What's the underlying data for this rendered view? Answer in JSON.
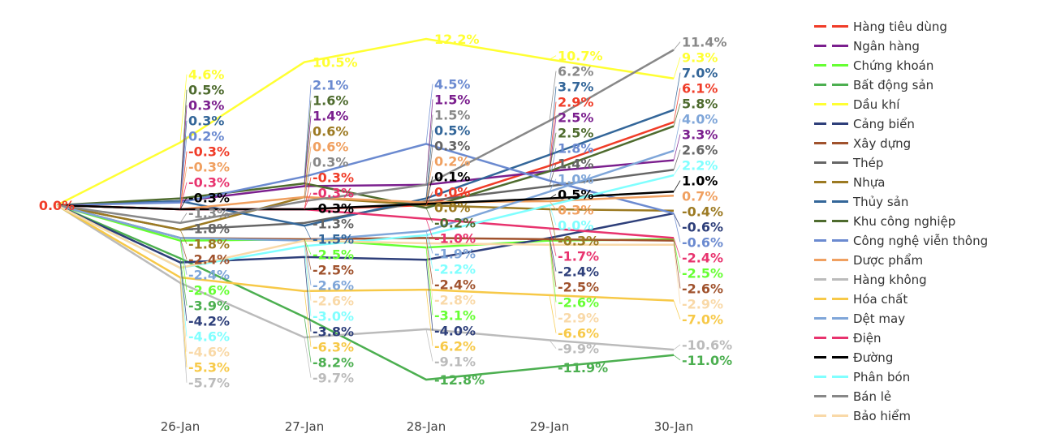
{
  "chart_data": {
    "type": "line",
    "categories": [
      "",
      "26-Jan",
      "27-Jan",
      "28-Jan",
      "29-Jan",
      "30-Jan"
    ],
    "ylim": [
      -14,
      13
    ],
    "grid": false,
    "legend_position": "right",
    "series": [
      {
        "name": "Hàng tiêu dùng",
        "color": "#f03c28",
        "values": [
          0.0,
          -0.3,
          -0.3,
          0.0,
          2.9,
          6.1
        ]
      },
      {
        "name": "Ngân hàng",
        "color": "#7b1f8e",
        "values": [
          0.0,
          0.3,
          1.4,
          1.5,
          2.5,
          3.3
        ]
      },
      {
        "name": "Chứng khoán",
        "color": "#66ff33",
        "values": [
          0.0,
          -2.6,
          -2.5,
          -3.1,
          -2.6,
          -2.5
        ]
      },
      {
        "name": "Bất động sản",
        "color": "#4caf50",
        "values": [
          0.0,
          -3.9,
          -8.2,
          -12.8,
          -11.9,
          -11.0
        ]
      },
      {
        "name": "Dầu khí",
        "color": "#ffff33",
        "values": [
          0.0,
          4.6,
          10.5,
          12.2,
          10.7,
          9.3
        ]
      },
      {
        "name": "Cảng biển",
        "color": "#2e3f7a",
        "values": [
          0.0,
          -4.2,
          -3.8,
          -4.0,
          -2.4,
          -0.6
        ]
      },
      {
        "name": "Xây dựng",
        "color": "#a0522d",
        "values": [
          0.0,
          -2.4,
          -2.5,
          -2.4,
          -2.5,
          -2.6
        ]
      },
      {
        "name": "Thép",
        "color": "#666666",
        "values": [
          0.0,
          -1.8,
          -1.3,
          0.3,
          1.4,
          2.6
        ]
      },
      {
        "name": "Nhựa",
        "color": "#9c7a22",
        "values": [
          0.0,
          -1.8,
          0.6,
          0.0,
          -0.3,
          -0.4
        ]
      },
      {
        "name": "Thủy sản",
        "color": "#336699",
        "values": [
          0.0,
          0.3,
          -1.5,
          0.5,
          3.7,
          7.0
        ]
      },
      {
        "name": "Khu công nghiệp",
        "color": "#4e6b2e",
        "values": [
          0.0,
          0.5,
          1.6,
          -0.2,
          2.5,
          5.8
        ]
      },
      {
        "name": "Công nghệ viễn thông",
        "color": "#6b8ad0",
        "values": [
          0.0,
          0.2,
          2.1,
          4.5,
          1.8,
          -0.6
        ]
      },
      {
        "name": "Dược phẩm",
        "color": "#f0a060",
        "values": [
          0.0,
          -0.3,
          0.6,
          0.2,
          0.3,
          0.7
        ]
      },
      {
        "name": "Hàng không",
        "color": "#bbbbbb",
        "values": [
          0.0,
          -5.7,
          -9.7,
          -9.1,
          -9.9,
          -10.6
        ]
      },
      {
        "name": "Hóa chất",
        "color": "#f7c948",
        "values": [
          0.0,
          -5.3,
          -6.3,
          -6.2,
          -6.6,
          -7.0
        ]
      },
      {
        "name": "Dệt may",
        "color": "#7fa6d9",
        "values": [
          0.0,
          -2.4,
          -2.6,
          -1.9,
          1.0,
          4.0
        ]
      },
      {
        "name": "Điện",
        "color": "#e8336e",
        "values": [
          0.0,
          -0.3,
          -0.3,
          -1.0,
          -1.7,
          -2.4
        ]
      },
      {
        "name": "Đường",
        "color": "#000000",
        "values": [
          0.0,
          -0.3,
          -0.3,
          0.1,
          0.5,
          1.0
        ]
      },
      {
        "name": "Phân bón",
        "color": "#80ffff",
        "values": [
          0.0,
          -4.6,
          -3.0,
          -2.2,
          0.0,
          2.2
        ]
      },
      {
        "name": "Bán lẻ",
        "color": "#888888",
        "values": [
          0.0,
          -1.3,
          0.3,
          1.5,
          6.2,
          11.4
        ]
      },
      {
        "name": "Bảo hiểm",
        "color": "#f9d9a8",
        "values": [
          0.0,
          -4.6,
          -2.6,
          -2.8,
          -2.9,
          -2.9
        ]
      }
    ]
  }
}
